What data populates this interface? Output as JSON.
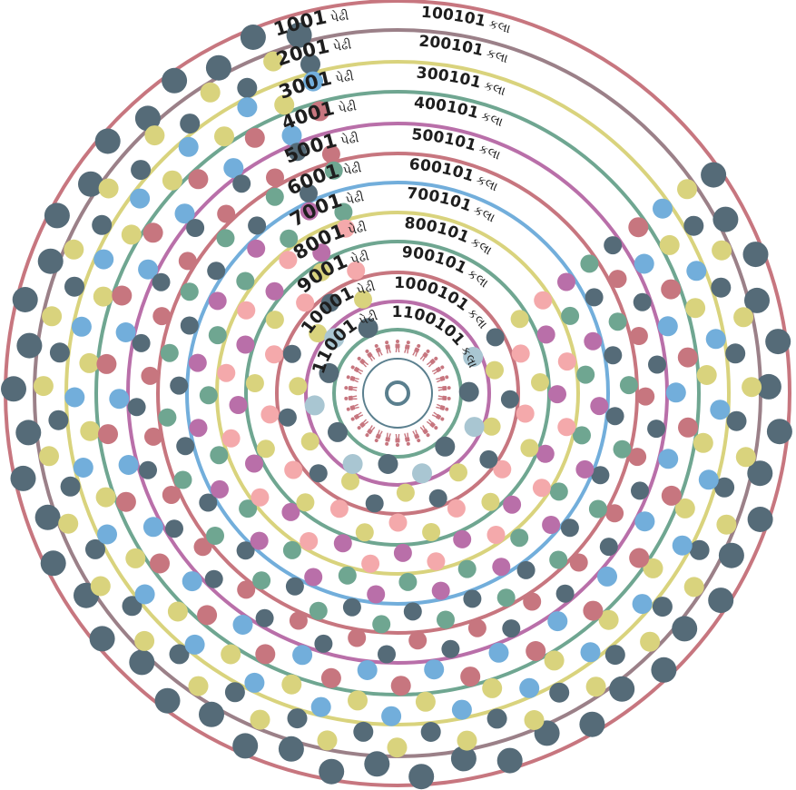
{
  "colors": {
    "background": "#ffffff",
    "text": "#1e1e1e",
    "palette": {
      "rose": "#c7767f",
      "mauve": "#9b8088",
      "olive": "#d9d37d",
      "teal": "#6fa691",
      "violet": "#b96fa9",
      "blue": "#72aedb",
      "slate": "#556b78",
      "pink": "#f4a9ab",
      "powder": "#a9c6d2",
      "center": "#5a7f8e"
    }
  },
  "generations": [
    {
      "gen_label": "1001",
      "gen_word": "પેઢી",
      "years_label": "100101",
      "years_word": "કલા",
      "ring_color": "rose",
      "dots": [
        "slate",
        "slate"
      ]
    },
    {
      "gen_label": "2001",
      "gen_word": "પેઢી",
      "years_label": "200101",
      "years_word": "કલા",
      "ring_color": "mauve",
      "dots": [
        "olive",
        "slate"
      ]
    },
    {
      "gen_label": "3001",
      "gen_word": "પેઢી",
      "years_label": "300101",
      "years_word": "કલા",
      "ring_color": "olive",
      "dots": [
        "blue",
        "olive"
      ]
    },
    {
      "gen_label": "4001",
      "gen_word": "પેઢી",
      "years_label": "400101",
      "years_word": "કલા",
      "ring_color": "teal",
      "dots": [
        "rose",
        "blue"
      ]
    },
    {
      "gen_label": "5001",
      "gen_word": "પેઢી",
      "years_label": "500101",
      "years_word": "કલા",
      "ring_color": "violet",
      "dots": [
        "slate",
        "rose"
      ]
    },
    {
      "gen_label": "6001",
      "gen_word": "પેઢી",
      "years_label": "600101",
      "years_word": "કલા",
      "ring_color": "rose",
      "dots": [
        "teal",
        "slate"
      ]
    },
    {
      "gen_label": "7001",
      "gen_word": "પેઢી",
      "years_label": "700101",
      "years_word": "કલા",
      "ring_color": "blue",
      "dots": [
        "violet",
        "teal"
      ]
    },
    {
      "gen_label": "8001",
      "gen_word": "પેઢી",
      "years_label": "800101",
      "years_word": "કલા",
      "ring_color": "olive",
      "dots": [
        "pink",
        "violet"
      ]
    },
    {
      "gen_label": "9001",
      "gen_word": "પેઢી",
      "years_label": "900101",
      "years_word": "કલા",
      "ring_color": "teal",
      "dots": [
        "olive",
        "pink"
      ]
    },
    {
      "gen_label": "10001",
      "gen_word": "પેઢી",
      "years_label": "1000101",
      "years_word": "કલા",
      "ring_color": "rose",
      "dots": [
        "slate",
        "olive"
      ]
    },
    {
      "gen_label": "11001",
      "gen_word": "પેઢી",
      "years_label": "1100101",
      "years_word": "કલા",
      "ring_color": "violet",
      "dots": [
        "powder",
        "slate"
      ]
    },
    {
      "gen_label": "",
      "gen_word": "",
      "years_label": "",
      "years_word": "",
      "ring_color": "teal",
      "dots": []
    }
  ],
  "center": {
    "ring_color": "center",
    "figure_color": "rose",
    "figure_icon": "person-pictogram-icon",
    "center_icon": "bullseye-icon"
  }
}
